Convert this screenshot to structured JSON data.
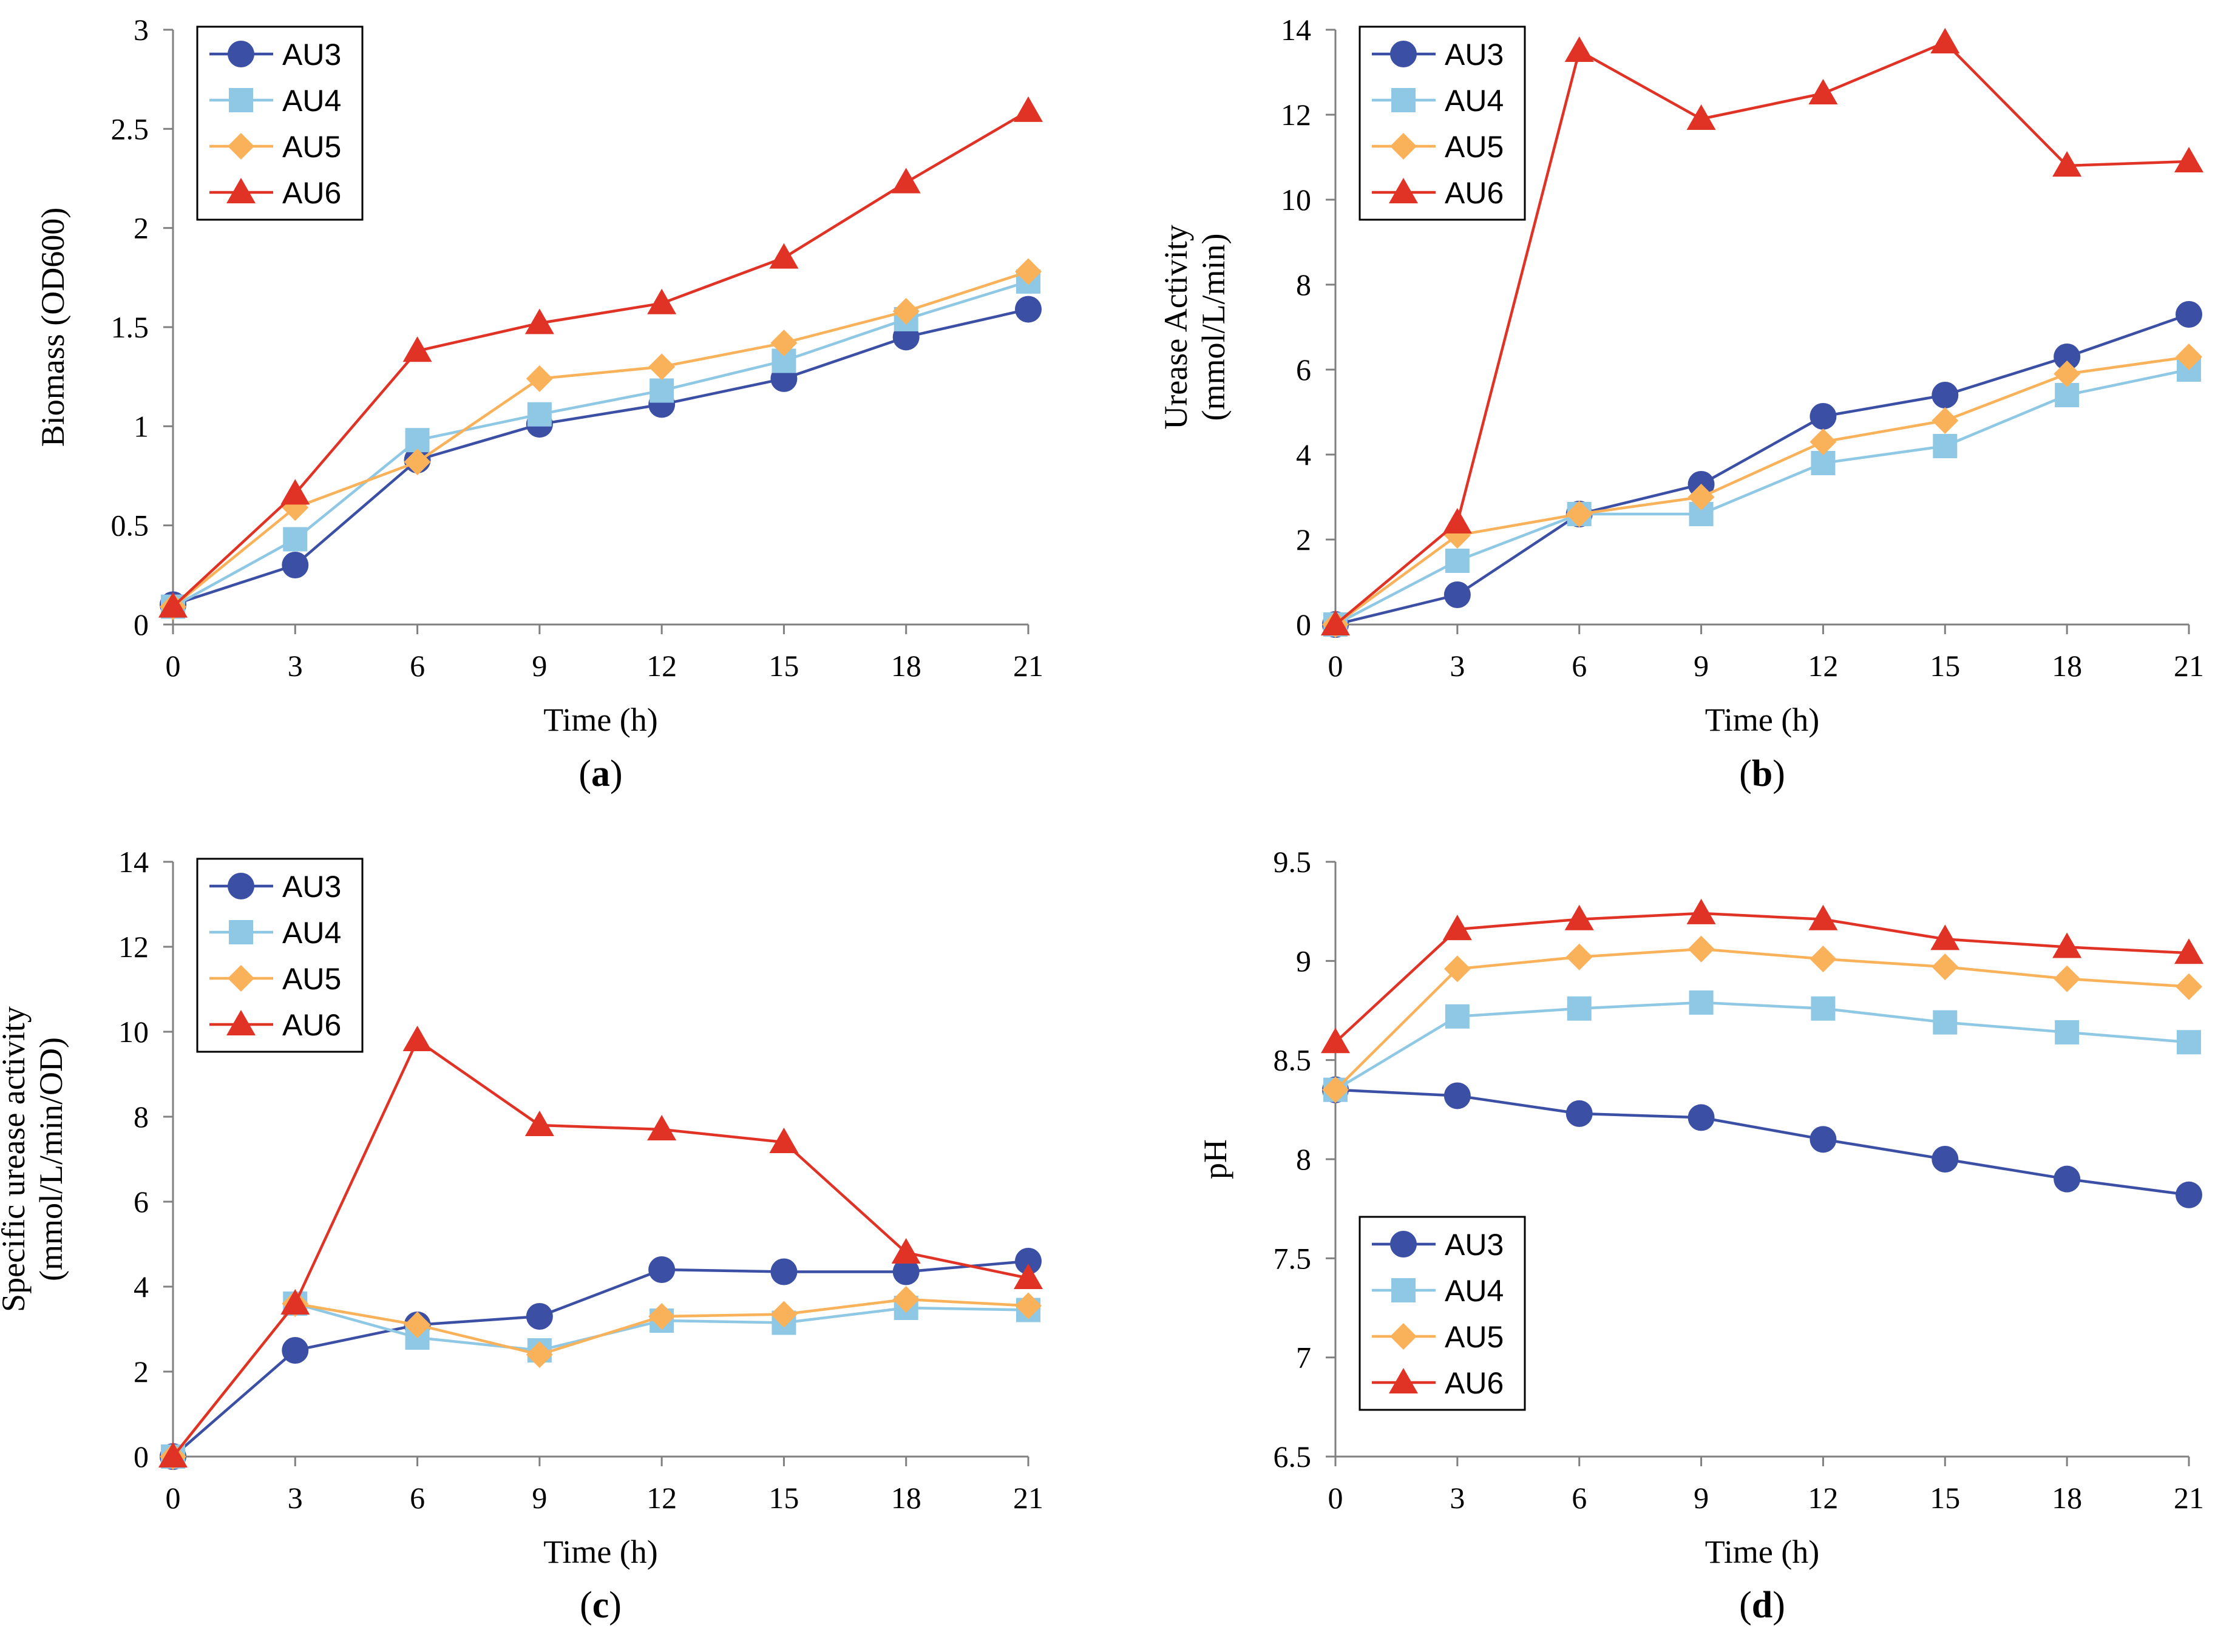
{
  "colors": {
    "AU3": "#3b4fa5",
    "AU4": "#8ec8e4",
    "AU5": "#f9b25a",
    "AU6": "#e03325",
    "axis": "#808080"
  },
  "chart_data": [
    {
      "type": "line",
      "panel_label": "a",
      "xlabel": "Time (h)",
      "ylabel": [
        "Biomass (OD600)"
      ],
      "x": [
        0,
        3,
        6,
        9,
        12,
        15,
        18,
        21
      ],
      "xlim": [
        0,
        21
      ],
      "ylim": [
        0,
        3
      ],
      "yticks": [
        "0",
        "0.5",
        "1",
        "1.5",
        "2",
        "2.5",
        "3"
      ],
      "legend_position": "top-left",
      "series": [
        {
          "name": "AU3",
          "marker": "circle",
          "values": [
            0.1,
            0.3,
            0.83,
            1.01,
            1.11,
            1.24,
            1.45,
            1.59
          ]
        },
        {
          "name": "AU4",
          "marker": "square",
          "values": [
            0.09,
            0.43,
            0.93,
            1.06,
            1.18,
            1.33,
            1.54,
            1.73
          ]
        },
        {
          "name": "AU5",
          "marker": "diamond",
          "values": [
            0.09,
            0.59,
            0.82,
            1.24,
            1.3,
            1.42,
            1.58,
            1.78
          ]
        },
        {
          "name": "AU6",
          "marker": "triangle",
          "values": [
            0.09,
            0.66,
            1.38,
            1.52,
            1.62,
            1.85,
            2.23,
            2.59
          ]
        }
      ]
    },
    {
      "type": "line",
      "panel_label": "b",
      "xlabel": "Time (h)",
      "ylabel": [
        "Urease Activity",
        "(mmol/L/min)"
      ],
      "x": [
        0,
        3,
        6,
        9,
        12,
        15,
        18,
        21
      ],
      "xlim": [
        0,
        21
      ],
      "ylim": [
        0,
        14
      ],
      "yticks": [
        "0",
        "2",
        "4",
        "6",
        "8",
        "10",
        "12",
        "14"
      ],
      "legend_position": "top-left",
      "series": [
        {
          "name": "AU3",
          "marker": "circle",
          "values": [
            0,
            0.7,
            2.6,
            3.3,
            4.9,
            5.4,
            6.3,
            7.3
          ]
        },
        {
          "name": "AU4",
          "marker": "square",
          "values": [
            0,
            1.5,
            2.6,
            2.6,
            3.8,
            4.2,
            5.4,
            6.0
          ]
        },
        {
          "name": "AU5",
          "marker": "diamond",
          "values": [
            0,
            2.1,
            2.6,
            3.0,
            4.3,
            4.8,
            5.9,
            6.3
          ]
        },
        {
          "name": "AU6",
          "marker": "triangle",
          "values": [
            0,
            2.4,
            13.5,
            11.9,
            12.5,
            13.7,
            10.8,
            10.9
          ]
        }
      ]
    },
    {
      "type": "line",
      "panel_label": "c",
      "xlabel": "Time (h)",
      "ylabel": [
        "Specific urease activity",
        "(mmol/L/min/OD)"
      ],
      "x": [
        0,
        3,
        6,
        9,
        12,
        15,
        18,
        21
      ],
      "xlim": [
        0,
        21
      ],
      "ylim": [
        0,
        14
      ],
      "yticks": [
        "0",
        "2",
        "4",
        "6",
        "8",
        "10",
        "12",
        "14"
      ],
      "legend_position": "top-left",
      "series": [
        {
          "name": "AU3",
          "marker": "circle",
          "values": [
            0,
            2.5,
            3.1,
            3.3,
            4.4,
            4.35,
            4.35,
            4.6
          ]
        },
        {
          "name": "AU4",
          "marker": "square",
          "values": [
            0,
            3.6,
            2.8,
            2.5,
            3.2,
            3.15,
            3.5,
            3.45
          ]
        },
        {
          "name": "AU5",
          "marker": "diamond",
          "values": [
            0,
            3.6,
            3.1,
            2.4,
            3.3,
            3.35,
            3.7,
            3.55
          ]
        },
        {
          "name": "AU6",
          "marker": "triangle",
          "values": [
            0,
            3.6,
            9.8,
            7.8,
            7.7,
            7.4,
            4.8,
            4.2
          ]
        }
      ]
    },
    {
      "type": "line",
      "panel_label": "d",
      "xlabel": "Time (h)",
      "ylabel": [
        "pH"
      ],
      "x": [
        0,
        3,
        6,
        9,
        12,
        15,
        18,
        21
      ],
      "xlim": [
        0,
        21
      ],
      "ylim": [
        6.5,
        9.5
      ],
      "yticks": [
        "6.5",
        "7",
        "7.5",
        "8",
        "8.5",
        "9",
        "9.5"
      ],
      "legend_position": "bottom-left",
      "series": [
        {
          "name": "AU3",
          "marker": "circle",
          "values": [
            8.35,
            8.32,
            8.23,
            8.21,
            8.1,
            8.0,
            7.9,
            7.82
          ]
        },
        {
          "name": "AU4",
          "marker": "square",
          "values": [
            8.35,
            8.72,
            8.76,
            8.79,
            8.76,
            8.69,
            8.64,
            8.59
          ]
        },
        {
          "name": "AU5",
          "marker": "diamond",
          "values": [
            8.35,
            8.96,
            9.02,
            9.06,
            9.01,
            8.97,
            8.91,
            8.87
          ]
        },
        {
          "name": "AU6",
          "marker": "triangle",
          "values": [
            8.59,
            9.16,
            9.21,
            9.24,
            9.21,
            9.11,
            9.07,
            9.04
          ]
        }
      ]
    }
  ]
}
